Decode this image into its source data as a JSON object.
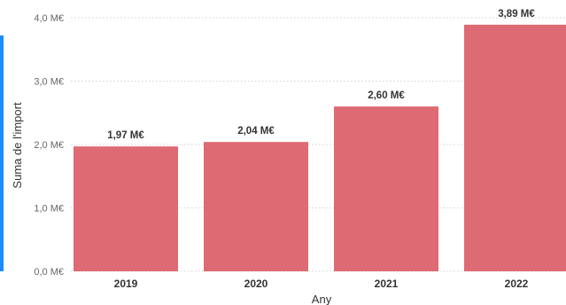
{
  "accent_color": "#1a8cff",
  "chart_data": {
    "type": "bar",
    "categories": [
      "2019",
      "2020",
      "2021",
      "2022"
    ],
    "values": [
      1.97,
      2.04,
      2.6,
      3.89
    ],
    "data_labels": [
      "1,97 M€",
      "2,04 M€",
      "2,60 M€",
      "3,89 M€"
    ],
    "y_ticks": [
      0,
      1,
      2,
      3,
      4
    ],
    "y_tick_labels": [
      "0,0 M€",
      "1,0 M€",
      "2,0 M€",
      "3,0 M€",
      "4,0 M€"
    ],
    "ylim": [
      0,
      4.0
    ],
    "xlabel": "Any",
    "ylabel": "Suma de l'import",
    "bar_color": "#de6a73",
    "grid": true
  }
}
